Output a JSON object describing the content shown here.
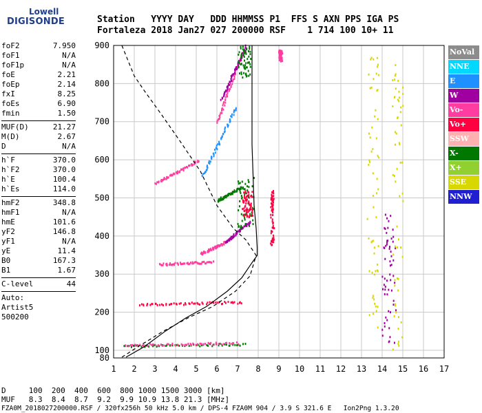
{
  "logo": {
    "line1": "Lowell",
    "line2": "DIGISONDE"
  },
  "header": {
    "line1": "Station   YYYY DAY   DDD HHMMSS P1  FFS S AXN PPS IGA PS",
    "line2": "Fortaleza 2018 Jan27 027 200000 RSF    1 714 100 10+ 11"
  },
  "params": [
    {
      "label": "foF2",
      "value": "7.950"
    },
    {
      "label": "foF1",
      "value": "N/A"
    },
    {
      "label": "foF1p",
      "value": "N/A"
    },
    {
      "label": "foE",
      "value": "2.21"
    },
    {
      "label": "foEp",
      "value": "2.14"
    },
    {
      "label": "fxI",
      "value": "8.25"
    },
    {
      "label": "foEs",
      "value": "6.90"
    },
    {
      "label": "fmin",
      "value": "1.50"
    },
    {
      "sep": true
    },
    {
      "label": "MUF(D)",
      "value": "21.27"
    },
    {
      "label": "M(D)",
      "value": "2.67"
    },
    {
      "label": "D",
      "value": "N/A"
    },
    {
      "sep": true
    },
    {
      "label": "h`F",
      "value": "370.0"
    },
    {
      "label": "h`F2",
      "value": "370.0"
    },
    {
      "label": "h`E",
      "value": "100.4"
    },
    {
      "label": "h`Es",
      "value": "114.0"
    },
    {
      "sep": true
    },
    {
      "label": "hmF2",
      "value": "348.8"
    },
    {
      "label": "hmF1",
      "value": "N/A"
    },
    {
      "label": "hmE",
      "value": "101.6"
    },
    {
      "label": "yF2",
      "value": "146.8"
    },
    {
      "label": "yF1",
      "value": "N/A"
    },
    {
      "label": "yE",
      "value": "11.4"
    },
    {
      "label": "B0",
      "value": "167.3"
    },
    {
      "label": "B1",
      "value": "1.67"
    },
    {
      "sep": true
    },
    {
      "label": "C-level",
      "value": "44"
    },
    {
      "sep": true
    },
    {
      "text": "Auto:"
    },
    {
      "text": "Artist5"
    },
    {
      "text": "500200"
    }
  ],
  "legend": [
    {
      "label": "NoVal",
      "color": "#8c8c8c"
    },
    {
      "label": "NNE",
      "color": "#00d8ff"
    },
    {
      "label": "E",
      "color": "#1e90ff"
    },
    {
      "label": "W",
      "color": "#a000a0"
    },
    {
      "label": "Vo-",
      "color": "#ff3ca0"
    },
    {
      "label": "Vo+",
      "color": "#ff0040"
    },
    {
      "label": "SSW",
      "color": "#ffb0b0"
    },
    {
      "label": "X-",
      "color": "#007800"
    },
    {
      "label": "X+",
      "color": "#90d030"
    },
    {
      "label": "SSE",
      "color": "#d8d800"
    },
    {
      "label": "NNW",
      "color": "#2020d0"
    }
  ],
  "footer": {
    "line1": "D     100  200  400  600  800 1000 1500 3000 [km]",
    "line2": "MUF   8.3  8.4  8.7  9.2  9.9 10.9 13.8 21.3 [MHz]",
    "line3": "FZA0M_2018027200000.RSF / 320fx256h 50 kHz 5.0 km / DPS-4 FZA0M 904 / 3.9 S 321.6 E   Ion2Png 1.3.20"
  },
  "chart_data": {
    "type": "scatter",
    "x_ticks": [
      1,
      2,
      3,
      4,
      5,
      6,
      7,
      8,
      9,
      10,
      11,
      12,
      13,
      14,
      15,
      16,
      17
    ],
    "y_ticks": [
      100,
      200,
      300,
      400,
      500,
      600,
      700,
      800,
      900
    ],
    "y_bottom_label": "80",
    "xlim": [
      1,
      17
    ],
    "ylim": [
      80,
      900
    ],
    "grid": true,
    "legend_position": "right",
    "profile_solid": [
      [
        1.6,
        82
      ],
      [
        2.5,
        110
      ],
      [
        3.5,
        150
      ],
      [
        4.5,
        185
      ],
      [
        5.5,
        215
      ],
      [
        6.5,
        255
      ],
      [
        7.2,
        290
      ],
      [
        7.7,
        330
      ],
      [
        7.95,
        349
      ],
      [
        7.95,
        370
      ],
      [
        7.9,
        420
      ],
      [
        7.8,
        480
      ],
      [
        7.75,
        560
      ],
      [
        7.7,
        640
      ],
      [
        7.7,
        750
      ],
      [
        7.7,
        900
      ]
    ],
    "profile_dashed": [
      [
        1.4,
        900
      ],
      [
        2,
        820
      ],
      [
        2.5,
        780
      ],
      [
        3.3,
        720
      ],
      [
        4.2,
        650
      ],
      [
        5.2,
        570
      ],
      [
        6,
        480
      ],
      [
        6.8,
        420
      ],
      [
        7.4,
        390
      ],
      [
        7.9,
        349
      ],
      [
        7.6,
        295
      ],
      [
        6.9,
        255
      ],
      [
        5.8,
        215
      ],
      [
        4.6,
        185
      ],
      [
        3.4,
        150
      ],
      [
        2.2,
        110
      ],
      [
        1.4,
        82
      ]
    ],
    "traces": [
      {
        "color": "#007800",
        "x": [
          1.5,
          7.3
        ],
        "y": [
          113,
          118
        ]
      },
      {
        "color": "#ff3ca0",
        "x": [
          1.5,
          7.0
        ],
        "y": [
          115,
          121
        ]
      },
      {
        "color": "#ff0040",
        "x": [
          2.2,
          7.2
        ],
        "y": [
          222,
          228
        ]
      },
      {
        "color": "#ff3ca0",
        "x": [
          3.2,
          5.8
        ],
        "y": [
          328,
          333
        ]
      },
      {
        "color": "#ff3ca0",
        "x": [
          5.2,
          6.4
        ],
        "y": [
          355,
          385
        ]
      },
      {
        "color": "#a000a0",
        "x": [
          6.4,
          7.6
        ],
        "y": [
          385,
          440
        ]
      },
      {
        "color": "#007800",
        "x": [
          7.0,
          7.75
        ],
        "y": [
          420,
          560
        ]
      },
      {
        "color": "#ff0040",
        "x": [
          7.2,
          7.7
        ],
        "y": [
          450,
          520
        ]
      },
      {
        "color": "#1e90ff",
        "x": [
          5.3,
          6.9
        ],
        "y": [
          560,
          740
        ]
      },
      {
        "color": "#ff3ca0",
        "x": [
          6.0,
          7.2
        ],
        "y": [
          700,
          880
        ]
      },
      {
        "color": "#a000a0",
        "x": [
          6.2,
          7.4
        ],
        "y": [
          760,
          900
        ]
      },
      {
        "color": "#007800",
        "x": [
          7.0,
          7.6
        ],
        "y": [
          820,
          900
        ]
      },
      {
        "color": "#ff3ca0",
        "x": [
          3.0,
          5.1
        ],
        "y": [
          540,
          600
        ]
      },
      {
        "color": "#007800",
        "x": [
          6.0,
          7.2
        ],
        "y": [
          495,
          530
        ]
      },
      {
        "color": "#ff0040",
        "x": [
          8.6,
          8.7
        ],
        "y": [
          380,
          520
        ]
      },
      {
        "color": "#ff3ca0",
        "x": [
          9.0,
          9.1
        ],
        "y": [
          860,
          890
        ]
      },
      {
        "color": "#d8d800",
        "x": [
          13.3,
          13.8
        ],
        "y": [
          90,
          900
        ]
      },
      {
        "color": "#a000a0",
        "x": [
          14.0,
          14.6
        ],
        "y": [
          120,
          460
        ]
      },
      {
        "color": "#d8d800",
        "x": [
          14.5,
          15.0
        ],
        "y": [
          90,
          860
        ]
      }
    ]
  }
}
